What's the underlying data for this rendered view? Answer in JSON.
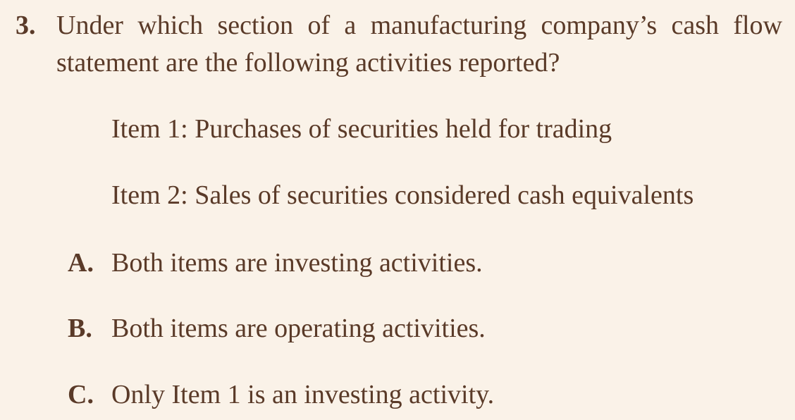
{
  "question": {
    "number": "3.",
    "text": "Under which section of a manufacturing company’s cash flow statement are the following activities reported?"
  },
  "items": [
    {
      "label": "Item 1: Purchases of securities held for trading"
    },
    {
      "label": "Item 2: Sales of securities considered cash equivalents"
    }
  ],
  "options": [
    {
      "letter": "A.",
      "text": "Both items are investing activities."
    },
    {
      "letter": "B.",
      "text": "Both items are operating activities."
    },
    {
      "letter": "C.",
      "text": "Only Item 1 is an investing activity."
    }
  ]
}
